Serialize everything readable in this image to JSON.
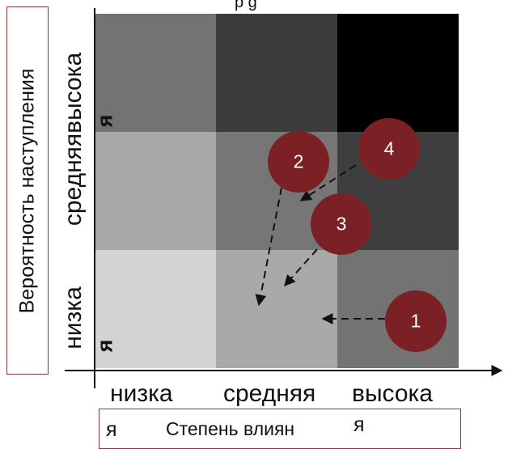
{
  "axis_x": {
    "title": "Степень влияния",
    "title_main": "Степень влиян",
    "title_tail": "я",
    "ticks": [
      "низка",
      "средняя",
      "высока"
    ],
    "tick_low_tail": "я",
    "tick_high_tail": "я"
  },
  "axis_y": {
    "title": "Вероятность наступления",
    "ticks": [
      "низка",
      "средняявысока"
    ],
    "tick_low_tail": "я",
    "tick_high_tail": "я"
  },
  "top_fragment": "р     g",
  "colors": {
    "cells": [
      [
        "#d3d3d3",
        "#a9a9a9",
        "#737373"
      ],
      [
        "#a9a9a9",
        "#767676",
        "#3e3e3e"
      ],
      [
        "#737373",
        "#3c3c3c",
        "#000000"
      ]
    ],
    "badge": "#7b2126",
    "box_border": "#8b3a3a"
  },
  "badges": [
    "1",
    "2",
    "3",
    "4"
  ]
}
